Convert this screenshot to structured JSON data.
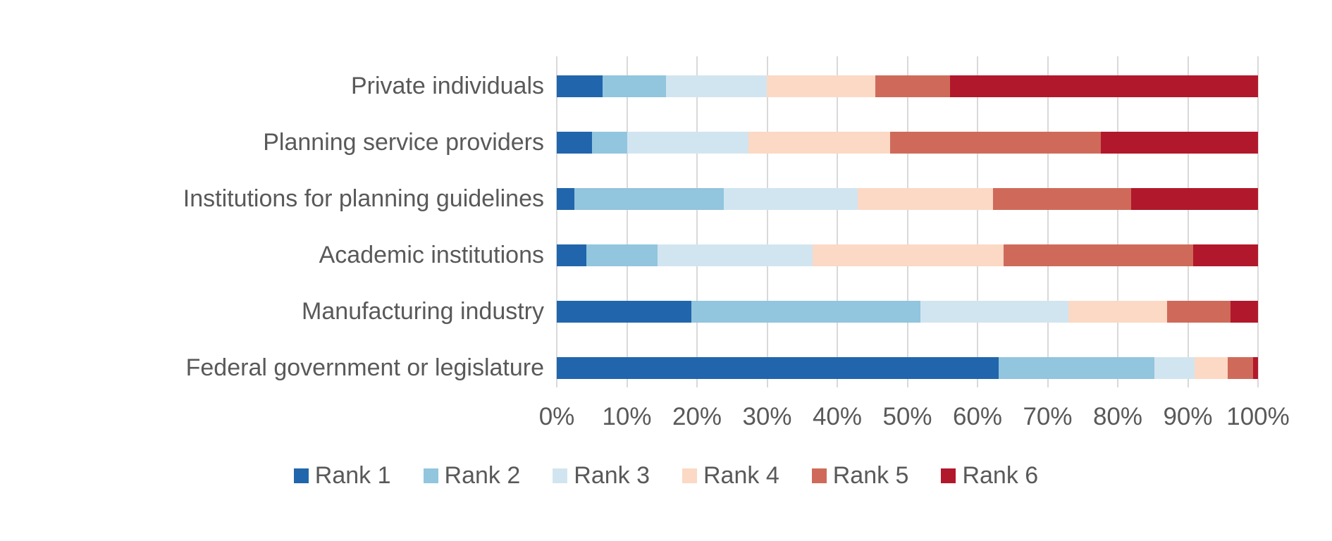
{
  "chart_data": {
    "type": "bar",
    "variant": "horizontal-stacked-100pct",
    "title": "",
    "xlabel": "",
    "ylabel": "",
    "xlim": [
      0,
      100
    ],
    "x_ticks": [
      "0%",
      "10%",
      "20%",
      "30%",
      "40%",
      "50%",
      "60%",
      "70%",
      "80%",
      "90%",
      "100%"
    ],
    "grid": true,
    "legend_position": "bottom",
    "categories": [
      "Private individuals",
      "Planning service providers",
      "Institutions for planning guidelines",
      "Academic institutions",
      "Manufacturing industry",
      "Federal government or legislature"
    ],
    "series": [
      {
        "name": "Rank 1",
        "color": "#2166ac",
        "values": [
          6.5,
          5.0,
          2.5,
          4.2,
          19.2,
          63.0
        ]
      },
      {
        "name": "Rank 2",
        "color": "#92c5de",
        "values": [
          9.1,
          5.0,
          21.3,
          10.2,
          32.7,
          22.2
        ]
      },
      {
        "name": "Rank 3",
        "color": "#d1e5f0",
        "values": [
          14.4,
          17.3,
          19.1,
          22.1,
          21.1,
          5.8
        ]
      },
      {
        "name": "Rank 4",
        "color": "#fbd9c5",
        "values": [
          15.4,
          20.2,
          19.3,
          27.2,
          14.0,
          4.7
        ]
      },
      {
        "name": "Rank 5",
        "color": "#cf6a5a",
        "values": [
          10.7,
          30.1,
          19.7,
          27.1,
          9.1,
          3.6
        ]
      },
      {
        "name": "Rank 6",
        "color": "#b2182b",
        "values": [
          43.9,
          22.4,
          18.1,
          9.2,
          3.9,
          0.7
        ]
      }
    ]
  },
  "layout_colors": {
    "text": "#595959",
    "gridline": "#d9d9d9",
    "background": "#ffffff"
  }
}
